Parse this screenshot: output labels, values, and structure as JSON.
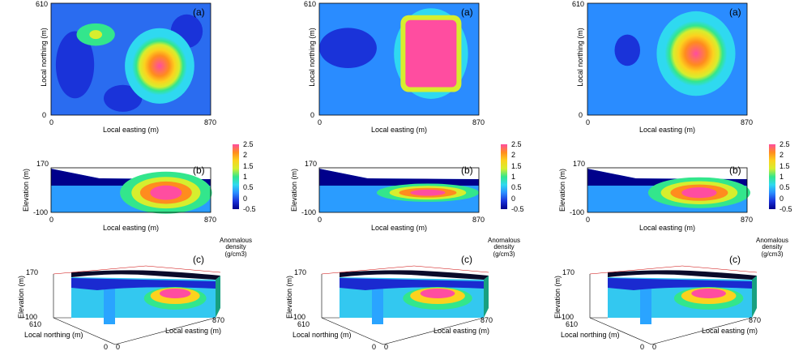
{
  "figure": {
    "columns": [
      {
        "plan": {
          "tag": "(a)",
          "xlabel": "Local easting (m)",
          "ylabel": "Local northing (m)",
          "x0": "0",
          "x1": "870",
          "y0": "0",
          "y1": "610"
        },
        "section": {
          "tag": "(b)",
          "xlabel": "Local easting (m)",
          "ylabel": "Elevation (m)",
          "x0": "0",
          "x1": "870",
          "ytop": "170",
          "ybot": "-100"
        },
        "view3d": {
          "tag": "(c)",
          "ylabel": "Elevation (m)",
          "ytop": "170",
          "ybot": "-100",
          "north_label": "Local northing (m)",
          "north_max": "610",
          "north_min": "0",
          "east_label": "Local easting (m)",
          "east_max": "870",
          "east_min": "0"
        },
        "colorbar": {
          "title": [
            "Anomalous",
            "density",
            "(g/cm3)"
          ],
          "ticks": [
            "2.5",
            "2",
            "1.5",
            "1",
            "0.5",
            "0",
            "-0.5"
          ]
        }
      },
      {
        "plan": {
          "tag": "(a)",
          "xlabel": "Local easting (m)",
          "ylabel": "Local northing (m)",
          "x0": "0",
          "x1": "870",
          "y0": "0",
          "y1": "610"
        },
        "section": {
          "tag": "(b)",
          "xlabel": "Local easting (m)",
          "ylabel": "Elevation (m)",
          "x0": "0",
          "x1": "870",
          "ytop": "170",
          "ybot": "-100"
        },
        "view3d": {
          "tag": "(c)",
          "ylabel": "Elevation (m)",
          "ytop": "170",
          "ybot": "-100",
          "north_label": "Local northing (m)",
          "north_max": "610",
          "north_min": "0",
          "east_label": "Local easting (m)",
          "east_max": "870",
          "east_min": "0"
        },
        "colorbar": {
          "title": [
            "Anomalous",
            "density",
            "(g/cm3)"
          ],
          "ticks": [
            "2.5",
            "2",
            "1.5",
            "1",
            "0.5",
            "0",
            "-0.5"
          ]
        }
      },
      {
        "plan": {
          "tag": "(a)",
          "xlabel": "Local easting (m)",
          "ylabel": "Local northing (m)",
          "x0": "0",
          "x1": "870",
          "y0": "0",
          "y1": "610"
        },
        "section": {
          "tag": "(b)",
          "xlabel": "Local easting (m)",
          "ylabel": "Elevation (m)",
          "x0": "0",
          "x1": "870",
          "ytop": "170",
          "ybot": "-100"
        },
        "view3d": {
          "tag": "(c)",
          "ylabel": "Elevation (m)",
          "ytop": "170",
          "ybot": "-100",
          "north_label": "Local northing (m)",
          "north_max": "610",
          "north_min": "0",
          "east_label": "Local easting (m)",
          "east_max": "870",
          "east_min": "0"
        },
        "colorbar": {
          "title": [
            "Anomalous",
            "density",
            "(g/cm3)"
          ],
          "ticks": [
            "2.5",
            "2",
            "1.5",
            "1",
            "0.5",
            "0",
            "-0.5"
          ]
        }
      }
    ]
  },
  "chart_data": {
    "type": "heatmap",
    "colorscale": {
      "min": -0.5,
      "max": 2.5,
      "colors": [
        "#00008b",
        "#1a33d9",
        "#2a8cff",
        "#2fd9f0",
        "#33e68c",
        "#d6ee2e",
        "#fcd21e",
        "#ff8c1e",
        "#ff4da0"
      ]
    },
    "x_range": [
      0,
      870
    ],
    "y_range": [
      0,
      610
    ],
    "z_range": [
      -100,
      170
    ],
    "colorbar_ticks": [
      2.5,
      2,
      1.5,
      1,
      0.5,
      0,
      -0.5
    ]
  }
}
